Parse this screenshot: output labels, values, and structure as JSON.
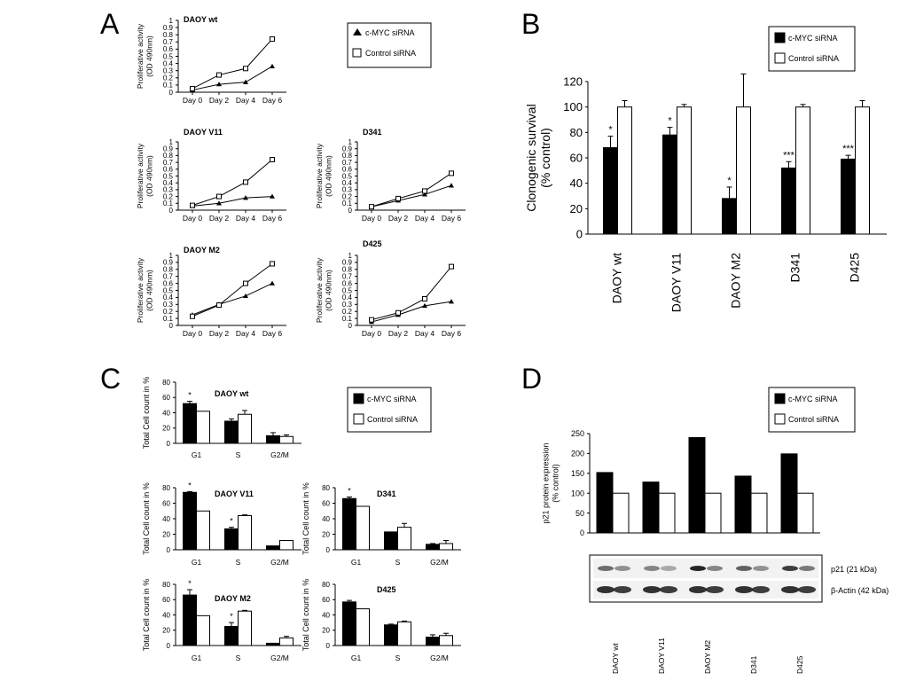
{
  "panel_letters": {
    "a": "A",
    "b": "B",
    "c": "C",
    "d": "D"
  },
  "chart_data": [
    {
      "id": "A1",
      "type": "line",
      "title": "DAOY wt",
      "ylabel": [
        "Proliferative activity",
        "(OD 490nm)"
      ],
      "categories": [
        "Day 0",
        "Day 2",
        "Day 4",
        "Day 6"
      ],
      "ylim": [
        0,
        1
      ],
      "yticks": [
        "0",
        "0.1",
        "0.2",
        "0.3",
        "0.4",
        "0.5",
        "0.6",
        "0.7",
        "0.8",
        "0.9",
        "1"
      ],
      "series": [
        {
          "name": "c-MYC siRNA",
          "marker": "triangle",
          "values": [
            0.03,
            0.11,
            0.14,
            0.36
          ]
        },
        {
          "name": "Control siRNA",
          "marker": "square",
          "values": [
            0.05,
            0.24,
            0.33,
            0.74
          ]
        }
      ]
    },
    {
      "id": "A2",
      "type": "line",
      "title": "DAOY  V11",
      "ylabel": [
        "Proliferative activity",
        "(OD 490nm)"
      ],
      "categories": [
        "Day 0",
        "Day 2",
        "Day 4",
        "Day 6"
      ],
      "ylim": [
        0,
        1
      ],
      "yticks": [
        "0",
        "0.1",
        "0.2",
        "0.3",
        "0.4",
        "0.5",
        "0.6",
        "0.7",
        "0.8",
        "0.9",
        "1"
      ],
      "series": [
        {
          "name": "c-MYC siRNA",
          "marker": "triangle",
          "values": [
            0.06,
            0.1,
            0.18,
            0.2
          ]
        },
        {
          "name": "Control siRNA",
          "marker": "square",
          "values": [
            0.07,
            0.2,
            0.41,
            0.74
          ]
        }
      ]
    },
    {
      "id": "A3",
      "type": "line",
      "title": "D341",
      "ylabel": [
        "Proliferative activity",
        "(OD 490nm)"
      ],
      "categories": [
        "Day 0",
        "Day 2",
        "Day 4",
        "Day 6"
      ],
      "ylim": [
        0,
        1
      ],
      "yticks": [
        "0",
        "0.1",
        "0.2",
        "0.3",
        "0.4",
        "0.5",
        "0.6",
        "0.7",
        "0.8",
        "0.9",
        "1"
      ],
      "series": [
        {
          "name": "c-MYC siRNA",
          "marker": "triangle",
          "values": [
            0.05,
            0.14,
            0.23,
            0.36
          ]
        },
        {
          "name": "Control siRNA",
          "marker": "square",
          "values": [
            0.05,
            0.17,
            0.28,
            0.54
          ]
        }
      ]
    },
    {
      "id": "A4",
      "type": "line",
      "title": "DAOY M2",
      "ylabel": [
        "Proliferative activity",
        "(OD 490nm)"
      ],
      "categories": [
        "Day 0",
        "Day 2",
        "Day 4",
        "Day 6"
      ],
      "ylim": [
        0,
        1
      ],
      "yticks": [
        "0",
        "0.1",
        "0.2",
        "0.3",
        "0.4",
        "0.5",
        "0.6",
        "0.7",
        "0.8",
        "0.9",
        "1"
      ],
      "series": [
        {
          "name": "c-MYC siRNA",
          "marker": "triangle",
          "values": [
            0.15,
            0.3,
            0.42,
            0.6
          ]
        },
        {
          "name": "Control siRNA",
          "marker": "square",
          "values": [
            0.13,
            0.29,
            0.6,
            0.88
          ]
        }
      ]
    },
    {
      "id": "A5",
      "type": "line",
      "title": "D425",
      "ylabel": [
        "Proliferative activity",
        "(OD 490nm)"
      ],
      "categories": [
        "Day 0",
        "Day 2",
        "Day 4",
        "Day 6"
      ],
      "ylim": [
        0,
        1
      ],
      "yticks": [
        "0",
        "0.1",
        "0.2",
        "0.3",
        "0.4",
        "0.5",
        "0.6",
        "0.7",
        "0.8",
        "0.9",
        "1"
      ],
      "series": [
        {
          "name": "c-MYC siRNA",
          "marker": "triangle",
          "values": [
            0.05,
            0.15,
            0.28,
            0.34
          ]
        },
        {
          "name": "Control siRNA",
          "marker": "square",
          "values": [
            0.08,
            0.18,
            0.38,
            0.84
          ]
        }
      ]
    },
    {
      "id": "B",
      "type": "bar",
      "title": "",
      "ylabel": [
        "Clonogenic survival",
        "(% control)"
      ],
      "categories": [
        "DAOY wt",
        "DAOY V11",
        "DAOY M2",
        "D341",
        "D425"
      ],
      "ylim": [
        0,
        120
      ],
      "yticks": [
        "0",
        "20",
        "40",
        "60",
        "80",
        "100",
        "120"
      ],
      "annotations": [
        "*",
        "*",
        "*",
        "***",
        "***"
      ],
      "series": [
        {
          "name": "c-MYC siRNA",
          "fill": "#000000",
          "values": [
            68,
            78,
            28,
            52,
            59
          ],
          "errors": [
            9,
            6,
            9,
            5,
            3
          ]
        },
        {
          "name": "Control siRNA",
          "fill": "#ffffff",
          "values": [
            100,
            100,
            100,
            100,
            100
          ],
          "errors": [
            5,
            2,
            26,
            2,
            5
          ]
        }
      ]
    },
    {
      "id": "C1",
      "type": "bar",
      "title": "DAOY wt",
      "ylabel": [
        "Total Cell count in %"
      ],
      "categories": [
        "G1",
        "S",
        "G2/M"
      ],
      "ylim": [
        0,
        80
      ],
      "yticks": [
        "0",
        "20",
        "40",
        "60",
        "80"
      ],
      "annotations": [
        "*",
        "",
        ""
      ],
      "series": [
        {
          "name": "c-MYC siRNA",
          "fill": "#000000",
          "values": [
            52,
            29,
            10
          ],
          "errors": [
            3,
            3,
            4
          ]
        },
        {
          "name": "Control siRNA",
          "fill": "#ffffff",
          "values": [
            42,
            38,
            9
          ],
          "errors": [
            0,
            5,
            2
          ]
        }
      ]
    },
    {
      "id": "C2",
      "type": "bar",
      "title": "DAOY  V11",
      "ylabel": [
        "Total Cell count in %"
      ],
      "categories": [
        "G1",
        "S",
        "G2/M"
      ],
      "ylim": [
        0,
        80
      ],
      "yticks": [
        "0",
        "20",
        "40",
        "60",
        "80"
      ],
      "annotations": [
        "*",
        "*",
        ""
      ],
      "series": [
        {
          "name": "c-MYC siRNA",
          "fill": "#000000",
          "values": [
            74,
            27,
            5
          ],
          "errors": [
            1,
            2,
            0
          ]
        },
        {
          "name": "Control siRNA",
          "fill": "#ffffff",
          "values": [
            50,
            44,
            12
          ],
          "errors": [
            0,
            1,
            0
          ]
        }
      ]
    },
    {
      "id": "C3",
      "type": "bar",
      "title": "D341",
      "ylabel": [
        "Total Cell count in %"
      ],
      "categories": [
        "G1",
        "S",
        "G2/M"
      ],
      "ylim": [
        0,
        80
      ],
      "yticks": [
        "0",
        "20",
        "40",
        "60",
        "80"
      ],
      "annotations": [
        "*",
        "",
        ""
      ],
      "series": [
        {
          "name": "c-MYC siRNA",
          "fill": "#000000",
          "values": [
            66,
            23,
            7
          ],
          "errors": [
            2,
            0,
            1
          ]
        },
        {
          "name": "Control siRNA",
          "fill": "#ffffff",
          "values": [
            56,
            29,
            8
          ],
          "errors": [
            0,
            5,
            4
          ]
        }
      ]
    },
    {
      "id": "C4",
      "type": "bar",
      "title": "DAOY M2",
      "ylabel": [
        "Total Cell count in %"
      ],
      "categories": [
        "G1",
        "S",
        "G2/M"
      ],
      "ylim": [
        0,
        80
      ],
      "yticks": [
        "0",
        "20",
        "40",
        "60",
        "80"
      ],
      "annotations": [
        "*",
        "*",
        ""
      ],
      "series": [
        {
          "name": "c-MYC siRNA",
          "fill": "#000000",
          "values": [
            66,
            25,
            3
          ],
          "errors": [
            7,
            5,
            0
          ]
        },
        {
          "name": "Control siRNA",
          "fill": "#ffffff",
          "values": [
            39,
            45,
            10
          ],
          "errors": [
            0,
            1,
            2
          ]
        }
      ]
    },
    {
      "id": "C5",
      "type": "bar",
      "title": "D425",
      "ylabel": [
        "Total Cell count in %"
      ],
      "categories": [
        "G1",
        "S",
        "G2/M"
      ],
      "ylim": [
        0,
        80
      ],
      "yticks": [
        "0",
        "20",
        "40",
        "60",
        "80"
      ],
      "annotations": [
        "",
        "",
        ""
      ],
      "series": [
        {
          "name": "c-MYC siRNA",
          "fill": "#000000",
          "values": [
            57,
            27,
            11
          ],
          "errors": [
            2,
            1,
            3
          ]
        },
        {
          "name": "Control siRNA",
          "fill": "#ffffff",
          "values": [
            48,
            31,
            13
          ],
          "errors": [
            0,
            1,
            3
          ]
        }
      ]
    },
    {
      "id": "D",
      "type": "bar",
      "title": "",
      "ylabel": [
        "p21 protein expression",
        "(% control)"
      ],
      "categories": [
        "DAOY wt",
        "DAOY V11",
        "DAOY M2",
        "D341",
        "D425"
      ],
      "ylim": [
        0,
        250
      ],
      "yticks": [
        "0",
        "50",
        "100",
        "150",
        "200",
        "250"
      ],
      "annotations": [
        "",
        "",
        "",
        "",
        ""
      ],
      "series": [
        {
          "name": "c-MYC siRNA",
          "fill": "#000000",
          "values": [
            152,
            128,
            240,
            143,
            199
          ],
          "errors": [
            0,
            0,
            0,
            0,
            0
          ]
        },
        {
          "name": "Control siRNA",
          "fill": "#ffffff",
          "values": [
            100,
            100,
            100,
            100,
            100
          ],
          "errors": [
            0,
            0,
            0,
            0,
            0
          ]
        }
      ]
    }
  ],
  "legends": {
    "a": [
      {
        "label": "c-MYC siRNA",
        "marker": "triangle"
      },
      {
        "label": "Control siRNA",
        "marker": "square"
      }
    ],
    "bars": [
      {
        "label": "c-MYC siRNA",
        "fill": "#000000"
      },
      {
        "label": "Control siRNA",
        "fill": "#ffffff"
      }
    ]
  },
  "blot": {
    "labels": [
      "p21 (21 kDa)",
      "β-Actin (42 kDa)"
    ],
    "lanes": [
      "DAOY wt",
      "DAOY V11",
      "DAOY M2",
      "D341",
      "D425"
    ]
  }
}
